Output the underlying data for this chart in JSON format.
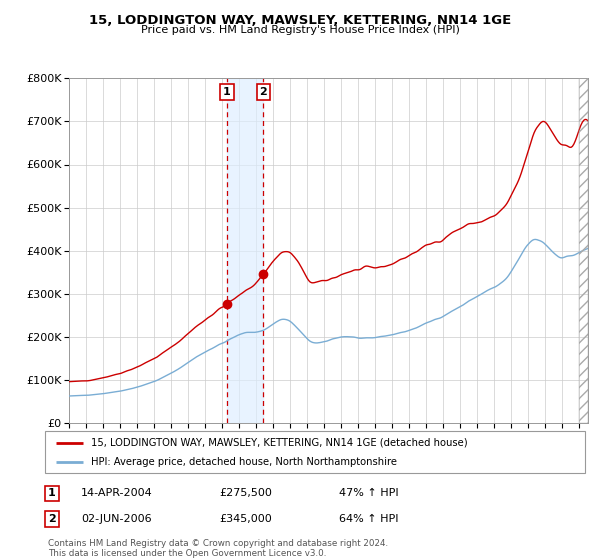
{
  "title": "15, LODDINGTON WAY, MAWSLEY, KETTERING, NN14 1GE",
  "subtitle": "Price paid vs. HM Land Registry's House Price Index (HPI)",
  "legend_line1": "15, LODDINGTON WAY, MAWSLEY, KETTERING, NN14 1GE (detached house)",
  "legend_line2": "HPI: Average price, detached house, North Northamptonshire",
  "transaction1_label": "14-APR-2004",
  "transaction1_price": "£275,500",
  "transaction1_hpi": "47% ↑ HPI",
  "transaction2_label": "02-JUN-2006",
  "transaction2_price": "£345,000",
  "transaction2_hpi": "64% ↑ HPI",
  "footer": "Contains HM Land Registry data © Crown copyright and database right 2024.\nThis data is licensed under the Open Government Licence v3.0.",
  "line1_color": "#cc0000",
  "line2_color": "#7aadd4",
  "background_color": "#ffffff",
  "grid_color": "#cccccc",
  "transaction1_x": 2004.28,
  "transaction1_y": 275500,
  "transaction2_x": 2006.42,
  "transaction2_y": 345000,
  "ylim": [
    0,
    800000
  ],
  "xlim_start": 1995.0,
  "xlim_end": 2025.5
}
